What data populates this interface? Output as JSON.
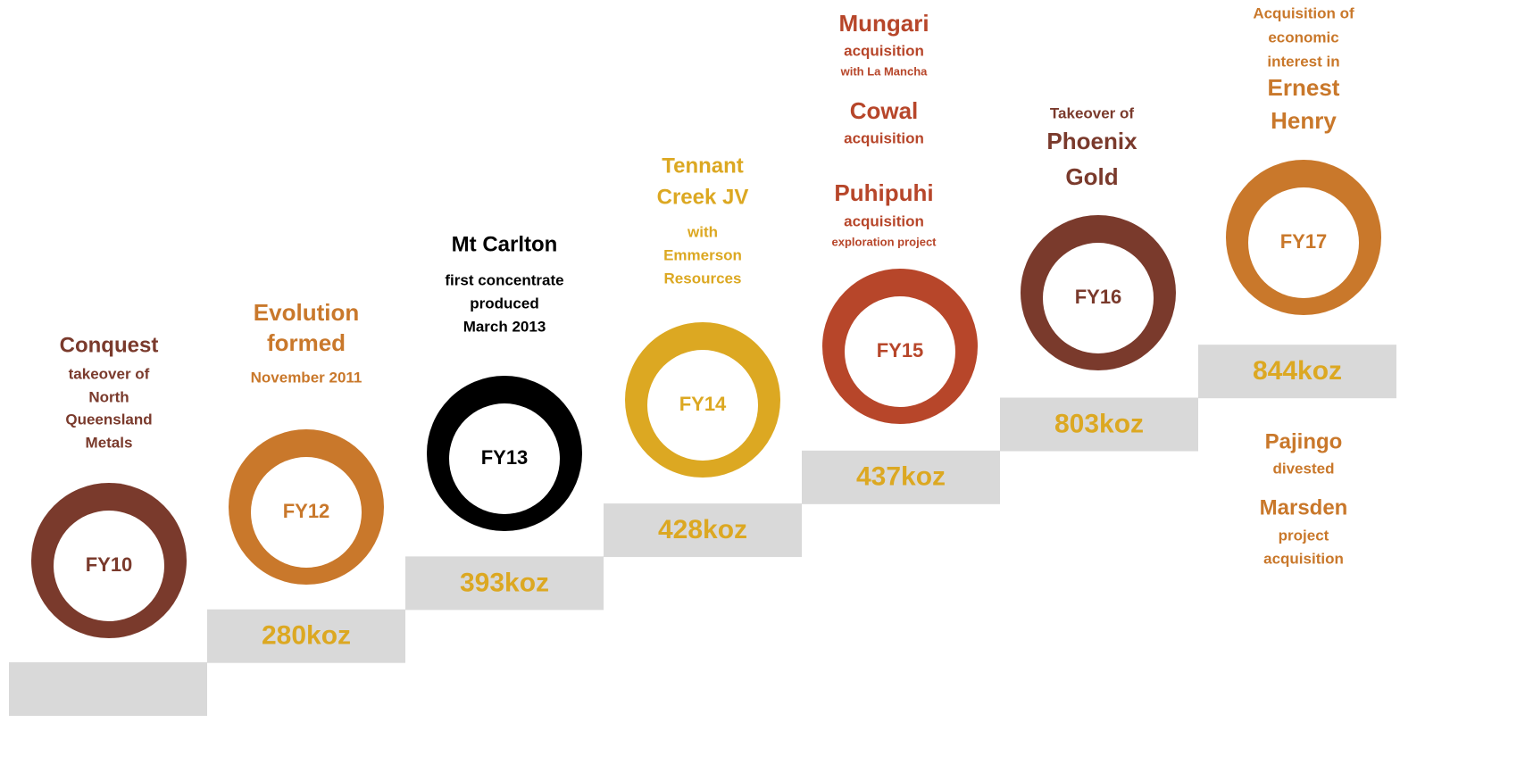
{
  "milestones": [
    {
      "year": "FY10",
      "color": "#7a3a2c",
      "lines": [
        "Conquest",
        "takeover of",
        "North",
        "Queensland",
        "Metals"
      ]
    },
    {
      "year": "FY12",
      "color": "#c9782b",
      "production": "280koz",
      "lines": [
        "Evolution",
        "formed",
        "November 2011"
      ]
    },
    {
      "year": "FY13",
      "color": "#000000",
      "production": "393koz",
      "lines": [
        "Mt Carlton",
        "first concentrate",
        "produced",
        "March 2013"
      ]
    },
    {
      "year": "FY14",
      "color": "#dca822",
      "production": "428koz",
      "lines": [
        "Tennant",
        "Creek JV",
        "with",
        "Emmerson",
        "Resources"
      ]
    },
    {
      "year": "FY15",
      "color": "#b7462a",
      "production": "437koz",
      "lines": [
        "Mungari",
        "acquisition",
        "with La Mancha",
        "Cowal",
        "acquisition",
        "Puhipuhi",
        "acquisition",
        "exploration project"
      ]
    },
    {
      "year": "FY16",
      "color": "#7a3a2c",
      "production": "803koz",
      "lines": [
        "Takeover of",
        "Phoenix",
        "Gold"
      ]
    },
    {
      "year": "FY17",
      "color": "#c9782b",
      "production": "844koz",
      "lines": [
        "Acquisition of",
        "economic",
        "interest in",
        "Ernest",
        "Henry"
      ],
      "notes": [
        "Pajingo",
        "divested",
        "Marsden",
        "project",
        "acquisition"
      ]
    }
  ]
}
